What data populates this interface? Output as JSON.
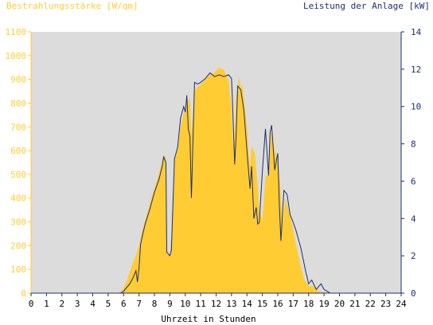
{
  "colors": {
    "plot_bg": "#dcdcdc",
    "irradiance": "#ffcc33",
    "power": "#1f2f6f",
    "right_axis": "#1f2f6f",
    "left_axis_text": "#ffcc33"
  },
  "chart_data": {
    "type": "area",
    "title_left": "Bestrahlungsstärke [W/qm]",
    "title_right": "Leistung der Anlage [kW]",
    "xlabel": "Uhrzeit in Stunden",
    "xlim": [
      0,
      24
    ],
    "ylim_left": [
      0,
      1100
    ],
    "ylim_right": [
      0,
      14
    ],
    "x_ticks": [
      "0",
      "1",
      "2",
      "3",
      "4",
      "5",
      "6",
      "7",
      "8",
      "9",
      "10",
      "11",
      "12",
      "13",
      "14",
      "15",
      "16",
      "17",
      "18",
      "19",
      "20",
      "21",
      "22",
      "23",
      "24"
    ],
    "y_left_ticks": [
      "0",
      "100",
      "200",
      "300",
      "400",
      "500",
      "600",
      "700",
      "800",
      "900",
      "1000",
      "1100"
    ],
    "y_right_ticks": [
      "0",
      "2",
      "4",
      "6",
      "8",
      "10",
      "12",
      "14"
    ],
    "grid": false,
    "series": [
      {
        "name": "Bestrahlungsstärke [W/qm]",
        "axis": "left",
        "style": "area",
        "x": [
          0,
          5.6,
          5.9,
          6.2,
          6.5,
          6.8,
          7.0,
          7.2,
          7.5,
          7.8,
          8.1,
          8.4,
          8.6,
          8.75,
          8.8,
          9.0,
          9.1,
          9.3,
          9.5,
          9.7,
          9.9,
          10.1,
          10.3,
          10.4,
          10.6,
          10.8,
          11.0,
          11.3,
          11.6,
          11.9,
          12.2,
          12.5,
          12.8,
          13.0,
          13.1,
          13.2,
          13.3,
          13.5,
          13.6,
          13.7,
          13.8,
          14.0,
          14.2,
          14.3,
          14.5,
          14.7,
          14.8,
          15.0,
          15.2,
          15.4,
          15.5,
          15.6,
          15.8,
          16.0,
          16.2,
          16.3,
          16.5,
          16.7,
          16.9,
          17.1,
          17.4,
          17.7,
          18.0,
          18.3,
          18.6,
          18.9,
          19.1,
          19.3,
          19.5,
          24
        ],
        "values": [
          0,
          0,
          10,
          50,
          110,
          160,
          200,
          260,
          330,
          400,
          460,
          530,
          580,
          570,
          180,
          150,
          230,
          560,
          600,
          700,
          760,
          800,
          820,
          660,
          850,
          870,
          880,
          900,
          920,
          930,
          950,
          940,
          900,
          780,
          620,
          680,
          830,
          910,
          860,
          880,
          820,
          700,
          520,
          620,
          590,
          450,
          350,
          310,
          490,
          500,
          650,
          690,
          600,
          560,
          420,
          290,
          400,
          350,
          300,
          230,
          140,
          60,
          30,
          30,
          10,
          5,
          0,
          0,
          0,
          0
        ]
      },
      {
        "name": "Leistung der Anlage [kW]",
        "axis": "right",
        "style": "line",
        "x": [
          0,
          5.8,
          6.0,
          6.2,
          6.4,
          6.6,
          6.8,
          6.9,
          7.0,
          7.1,
          7.2,
          7.4,
          7.7,
          8.0,
          8.3,
          8.5,
          8.6,
          8.75,
          8.8,
          9.0,
          9.1,
          9.3,
          9.5,
          9.7,
          9.9,
          10.0,
          10.1,
          10.2,
          10.3,
          10.4,
          10.6,
          10.8,
          11.0,
          11.3,
          11.6,
          11.9,
          12.2,
          12.5,
          12.8,
          13.0,
          13.05,
          13.2,
          13.3,
          13.4,
          13.6,
          13.8,
          14.0,
          14.2,
          14.3,
          14.45,
          14.6,
          14.7,
          14.8,
          15.0,
          15.2,
          15.4,
          15.5,
          15.6,
          15.8,
          16.0,
          16.1,
          16.2,
          16.4,
          16.6,
          16.8,
          17.0,
          17.2,
          17.5,
          17.8,
          18.0,
          18.2,
          18.5,
          18.8,
          19.0,
          19.2,
          19.4,
          24
        ],
        "values": [
          0,
          0,
          0.1,
          0.3,
          0.5,
          0.8,
          1.2,
          0.6,
          1.3,
          2.6,
          3.0,
          3.7,
          4.5,
          5.4,
          6.1,
          6.8,
          7.3,
          7.0,
          2.2,
          2.0,
          2.3,
          7.2,
          7.8,
          9.4,
          10.0,
          9.7,
          10.6,
          8.8,
          8.4,
          5.1,
          11.3,
          11.2,
          11.3,
          11.5,
          11.8,
          11.6,
          11.7,
          11.6,
          11.7,
          11.5,
          10.6,
          6.9,
          8.5,
          11.1,
          10.9,
          9.8,
          7.6,
          5.6,
          6.8,
          4.0,
          4.6,
          3.7,
          3.8,
          6.5,
          8.8,
          6.3,
          8.6,
          9.0,
          6.6,
          7.5,
          4.8,
          2.8,
          5.5,
          5.3,
          4.2,
          3.8,
          3.3,
          2.4,
          1.2,
          0.5,
          0.7,
          0.2,
          0.5,
          0.2,
          0.1,
          0,
          0
        ]
      }
    ]
  }
}
